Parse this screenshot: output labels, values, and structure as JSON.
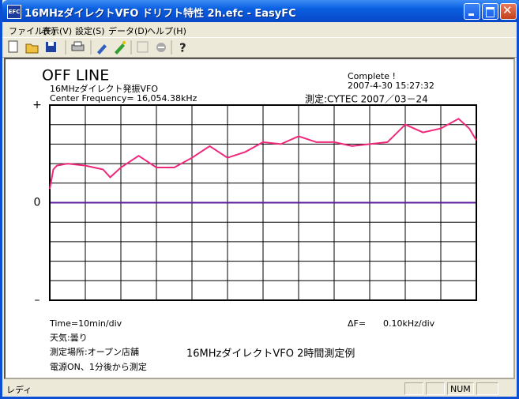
{
  "window": {
    "title": "16MHzダイレクトVFO ドリフト特性 2h.efc - EasyFC"
  },
  "menu": [
    "ファイル(F)",
    "表示(V)",
    "設定(S)",
    "データ(D)",
    "ヘルプ(H)"
  ],
  "status_bar": {
    "message": "レディ",
    "num": "NUM"
  },
  "chart_data": {
    "type": "line",
    "title": "OFF LINE",
    "subtitle": "16MHzダイレクト発振VFO",
    "center_frequency": "Center Frequency= 16,054.38kHz",
    "status": "Complete !",
    "timestamp": "2007-4-30 15:27:32",
    "measured_by": "測定:CYTEC 2007／03－24",
    "x_label": "Time=10min/div",
    "y_label": "ΔF=",
    "y_scale": "0.10kHz/div",
    "notes": [
      "天気:曇り",
      "測定場所:オープン店舗",
      "電源ON、1分後から測定"
    ],
    "caption": "16MHzダイレクトVFO 2時間測定例",
    "xlim": [
      0,
      120
    ],
    "ylim": [
      -0.5,
      0.5
    ],
    "yticks": [
      {
        "value": 0.5,
        "label": "+"
      },
      0,
      {
        "value": -0.5,
        "label": "–"
      }
    ],
    "x": [
      0,
      1,
      2,
      5,
      10,
      15,
      17,
      20,
      25,
      30,
      35,
      40,
      45,
      50,
      55,
      60,
      65,
      70,
      75,
      80,
      85,
      90,
      95,
      100,
      105,
      110,
      115,
      118,
      120
    ],
    "series": [
      {
        "color": "#f0287a",
        "values": [
          0.07,
          0.17,
          0.19,
          0.2,
          0.19,
          0.17,
          0.13,
          0.18,
          0.24,
          0.18,
          0.18,
          0.23,
          0.29,
          0.23,
          0.26,
          0.31,
          0.3,
          0.34,
          0.31,
          0.31,
          0.29,
          0.3,
          0.31,
          0.4,
          0.36,
          0.38,
          0.43,
          0.38,
          0.32
        ]
      }
    ]
  }
}
